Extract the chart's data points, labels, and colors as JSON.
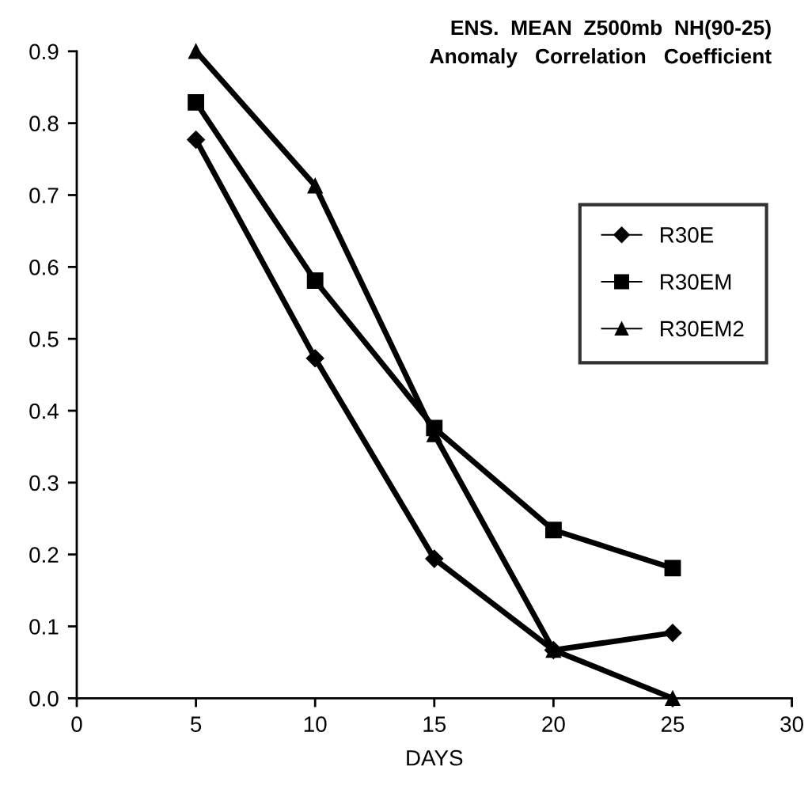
{
  "chart_data": {
    "type": "line",
    "title": "ENS.  MEAN  Z500mb  NH(90-25)\nAnomaly   Correlation   Coefficient",
    "xlabel": "DAYS",
    "x": [
      5,
      10,
      15,
      20,
      25
    ],
    "series": [
      {
        "name": "R30E",
        "color": "#000000",
        "marker": "diamond",
        "values": [
          0.777,
          0.473,
          0.194,
          0.067,
          0.091
        ]
      },
      {
        "name": "R30EM",
        "color": "#000000",
        "marker": "square",
        "values": [
          0.829,
          0.581,
          0.376,
          0.234,
          0.181
        ]
      },
      {
        "name": "R30EM2",
        "color": "#000000",
        "marker": "triangle",
        "values": [
          0.9,
          0.713,
          0.367,
          0.067,
          0.0
        ]
      }
    ],
    "xlim": [
      0,
      30
    ],
    "xticks": [
      0,
      5,
      10,
      15,
      20,
      25,
      30
    ],
    "ylim": [
      0,
      0.9
    ],
    "yticks": [
      {
        "value": 0,
        "label": "0.0"
      },
      0.1,
      0.2,
      0.3,
      0.4,
      0.5,
      0.6,
      0.7,
      0.8,
      0.9
    ],
    "grid": false,
    "legend": "top right",
    "line_style": "solid"
  }
}
